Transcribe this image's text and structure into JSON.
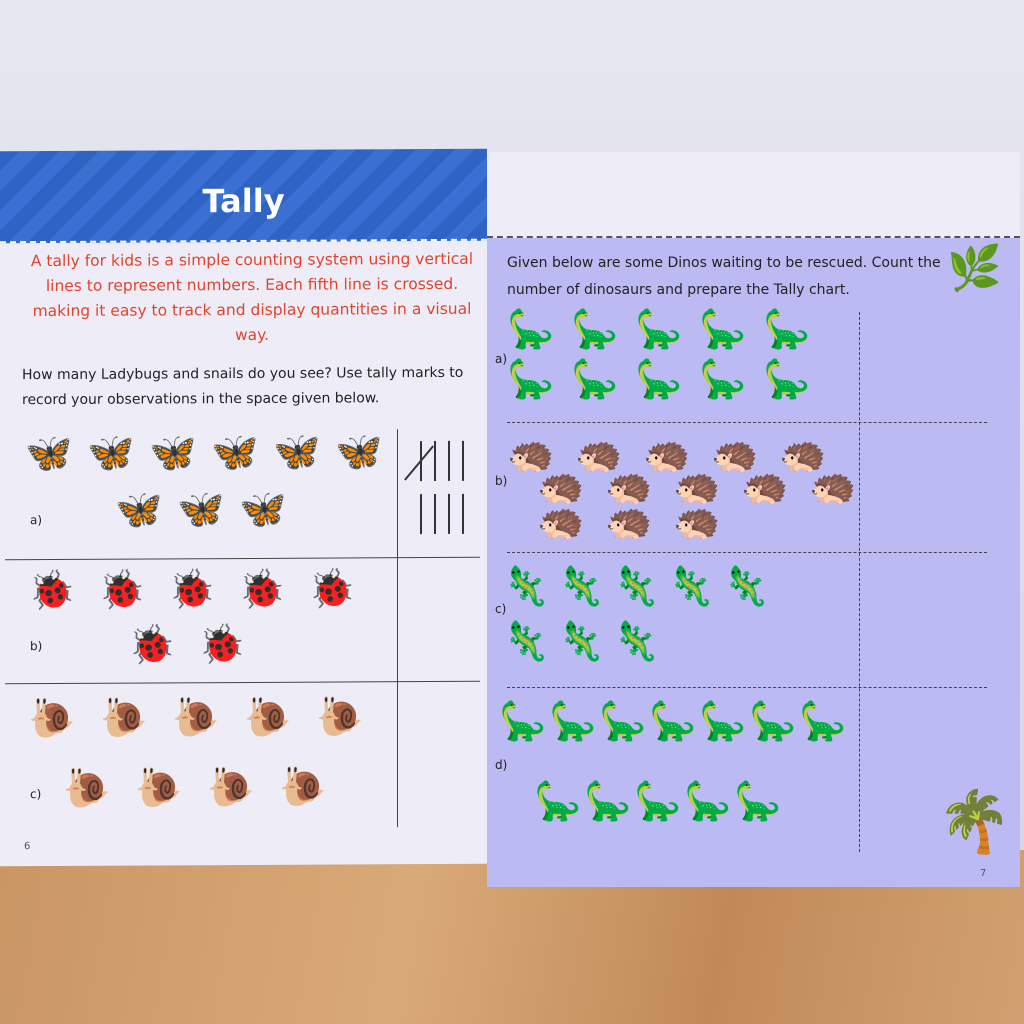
{
  "left_page": {
    "title": "Tally",
    "intro": "A tally for kids is a simple counting system using vertical lines to represent numbers. Each fifth line is crossed. making it easy to track and display quantities in a visual way.",
    "question": "How many Ladybugs and snails do you see? Use tally marks to record your observations in the space given below.",
    "page_number": "6",
    "rows": [
      {
        "label": "a)",
        "icon": "butterfly-icon",
        "count": 9,
        "tally_marks": 9
      },
      {
        "label": "b)",
        "icon": "ladybug-icon",
        "count": 7
      },
      {
        "label": "c)",
        "icon": "snail-icon",
        "count": 9
      }
    ]
  },
  "right_page": {
    "instructions": "Given below are some Dinos waiting to be rescued. Count the number of dinosaurs and prepare the Tally chart.",
    "page_number": "7",
    "rows": [
      {
        "label": "a)",
        "icon": "orange-dinosaur-icon",
        "count": 10,
        "color": "#d9532f"
      },
      {
        "label": "b)",
        "icon": "hedgehog-dinosaur-icon",
        "count": 13,
        "color": "#3b3b3b"
      },
      {
        "label": "c)",
        "icon": "green-dinosaur-icon",
        "count": 8,
        "color": "#3f9a5a"
      },
      {
        "label": "d)",
        "icon": "dark-dinosaur-icon",
        "count": 12,
        "color": "#2f3a44"
      }
    ]
  }
}
